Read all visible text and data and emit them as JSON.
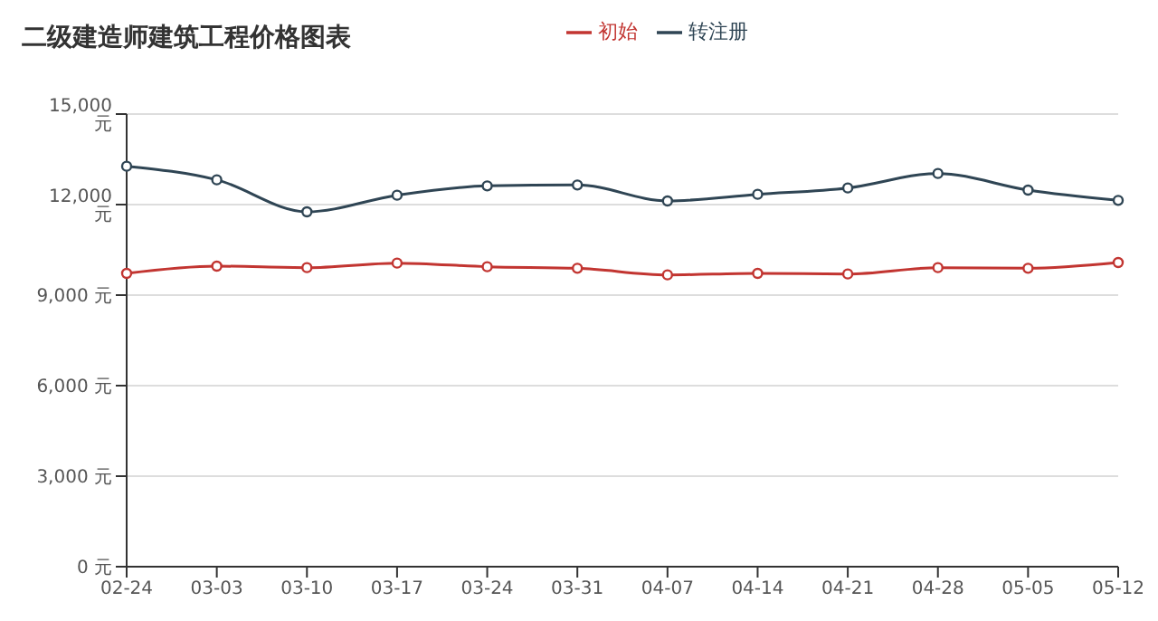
{
  "chart_data": {
    "type": "line",
    "title": "二级建造师建筑工程价格图表",
    "categories": [
      "02-24",
      "03-03",
      "03-10",
      "03-17",
      "03-24",
      "03-31",
      "04-07",
      "04-14",
      "04-21",
      "04-28",
      "05-05",
      "05-12"
    ],
    "series": [
      {
        "name": "初始",
        "color": "#c23531",
        "values": [
          9720,
          9960,
          9910,
          10060,
          9940,
          9890,
          9670,
          9720,
          9700,
          9910,
          9890,
          10080
        ]
      },
      {
        "name": "转注册",
        "color": "#2f4554",
        "values": [
          13270,
          12820,
          11760,
          12310,
          12620,
          12650,
          12120,
          12340,
          12550,
          13030,
          12480,
          12140
        ]
      }
    ],
    "ylim": [
      0,
      15000
    ],
    "yticks": [
      {
        "value": 0,
        "label": "0 元"
      },
      {
        "value": 3000,
        "label": "3,000 元"
      },
      {
        "value": 6000,
        "label": "6,000 元"
      },
      {
        "value": 9000,
        "label": "9,000 元"
      },
      {
        "value": 12000,
        "label": "12,000 元"
      },
      {
        "value": 15000,
        "label": "15,000 元"
      }
    ],
    "grid": "y",
    "legend": "top",
    "marker": "circle",
    "line_style": "solid"
  }
}
